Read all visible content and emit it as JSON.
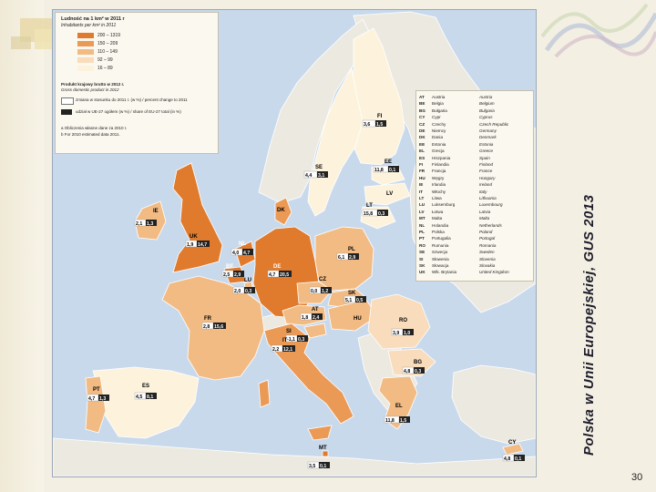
{
  "slide": {
    "title": "Polska w Unii Europejskiej, GUS 2013",
    "page_number": "30"
  },
  "legend": {
    "title": "Ludność na 1 km² w 2011 r",
    "subtitle": "Inhabitants per km² in 2011",
    "classes": [
      {
        "label": "200 – 1319",
        "color": "#e07a2c"
      },
      {
        "label": "150 – 209",
        "color": "#eb9a55"
      },
      {
        "label": "110 – 149",
        "color": "#f2bb83"
      },
      {
        "label": "92 – 99",
        "color": "#f8dcbc"
      },
      {
        "label": "16 – 89",
        "color": "#fdf3dd"
      }
    ],
    "gdp_title": "Produkt krajowy brutto w 2012 r.",
    "gdp_subtitle": "Gross domestic product in 2012",
    "gdp_row1": "zmiana w stosunku do 2011 r. (w %) / percent change to 2011",
    "gdp_row2": "udział w UE-27 ogółem (w %) / share of EU-27 total (in %)",
    "note1": "a Obliczenia własne dane za 2010 r.",
    "note2": "b For 2010 estimated data 2011."
  },
  "countries": [
    {
      "code": "AT",
      "pl": "Austria",
      "en": "Austria"
    },
    {
      "code": "BE",
      "pl": "Belgia",
      "en": "Belgium"
    },
    {
      "code": "BG",
      "pl": "Bułgaria",
      "en": "Bulgaria"
    },
    {
      "code": "CY",
      "pl": "Cypr",
      "en": "Cyprus"
    },
    {
      "code": "CZ",
      "pl": "Czechy",
      "en": "Czech Republic"
    },
    {
      "code": "DE",
      "pl": "Niemcy",
      "en": "Germany"
    },
    {
      "code": "DK",
      "pl": "Dania",
      "en": "Denmark"
    },
    {
      "code": "EE",
      "pl": "Estonia",
      "en": "Estonia"
    },
    {
      "code": "EL",
      "pl": "Grecja",
      "en": "Greece"
    },
    {
      "code": "ES",
      "pl": "Hiszpania",
      "en": "Spain"
    },
    {
      "code": "FI",
      "pl": "Finlandia",
      "en": "Finland"
    },
    {
      "code": "FR",
      "pl": "Francja",
      "en": "France"
    },
    {
      "code": "HU",
      "pl": "Węgry",
      "en": "Hungary"
    },
    {
      "code": "IE",
      "pl": "Irlandia",
      "en": "Ireland"
    },
    {
      "code": "IT",
      "pl": "Włochy",
      "en": "Italy"
    },
    {
      "code": "LT",
      "pl": "Litwa",
      "en": "Lithuania"
    },
    {
      "code": "LU",
      "pl": "Luksemburg",
      "en": "Luxembourg"
    },
    {
      "code": "LV",
      "pl": "Łotwa",
      "en": "Latvia"
    },
    {
      "code": "MT",
      "pl": "Malta",
      "en": "Malta"
    },
    {
      "code": "NL",
      "pl": "Holandia",
      "en": "Netherlands"
    },
    {
      "code": "PL",
      "pl": "Polska",
      "en": "Poland"
    },
    {
      "code": "PT",
      "pl": "Portugalia",
      "en": "Portugal"
    },
    {
      "code": "RO",
      "pl": "Rumunia",
      "en": "Romania"
    },
    {
      "code": "SE",
      "pl": "Szwecja",
      "en": "Sweden"
    },
    {
      "code": "SI",
      "pl": "Słowenia",
      "en": "Slovenia"
    },
    {
      "code": "SK",
      "pl": "Słowacja",
      "en": "Slovakia"
    },
    {
      "code": "UK",
      "pl": "Wlk. Brytania",
      "en": "United Kingdom"
    }
  ],
  "map_labels": {
    "FI": {
      "code": "FI",
      "v1": "3,6",
      "v2": "1,5"
    },
    "SE": {
      "code": "SE",
      "v1": "4,4",
      "v2": "3,1"
    },
    "EE": {
      "code": "EE",
      "v1": "11,8",
      "v2": "0,1"
    },
    "LV": {
      "code": "LV",
      "v1": "",
      "v2": ""
    },
    "LT": {
      "code": "LT",
      "v1": "15,8",
      "v2": "0,3"
    },
    "IE": {
      "code": "IE",
      "v1": "2,1",
      "v2": "1,3"
    },
    "UK": {
      "code": "UK",
      "v1": "1,9",
      "v2": "14,7"
    },
    "DK": {
      "code": "DK",
      "v1": "",
      "v2": ""
    },
    "NL": {
      "code": "NL",
      "v1": "4,0",
      "v2": "4,7"
    },
    "BE": {
      "code": "BE",
      "v1": "2,5",
      "v2": "2,9"
    },
    "LU": {
      "code": "LU",
      "v1": "2,0",
      "v2": "0,3"
    },
    "DE": {
      "code": "DE",
      "v1": "4,7",
      "v2": "20,5"
    },
    "PL": {
      "code": "PL",
      "v1": "6,1",
      "v2": "2,9"
    },
    "CZ": {
      "code": "CZ",
      "v1": "0,0",
      "v2": "1,2"
    },
    "SK": {
      "code": "SK",
      "v1": "5,1",
      "v2": "0,5"
    },
    "AT": {
      "code": "AT",
      "v1": "1,8",
      "v2": "2,4"
    },
    "HU": {
      "code": "HU",
      "v1": "",
      "v2": ""
    },
    "FR": {
      "code": "FR",
      "v1": "2,8",
      "v2": "15,6"
    },
    "RO": {
      "code": "RO",
      "v1": "3,9",
      "v2": "1,0"
    },
    "SI": {
      "code": "SI",
      "v1": "-1,1",
      "v2": "0,3"
    },
    "IT": {
      "code": "IT",
      "v1": "2,2",
      "v2": "12,1"
    },
    "BG": {
      "code": "BG",
      "v1": "4,8",
      "v2": "0,3"
    },
    "PT": {
      "code": "PT",
      "v1": "4,7",
      "v2": "1,3"
    },
    "ES": {
      "code": "ES",
      "v1": "4,5",
      "v2": "8,1"
    },
    "EL": {
      "code": "EL",
      "v1": "11,8",
      "v2": "1,5"
    },
    "MT": {
      "code": "MT",
      "v1": "3,5",
      "v2": "0,1"
    },
    "CY": {
      "code": "CY",
      "v1": "4,8",
      "v2": "0,1"
    }
  },
  "colors": {
    "sea": "#c9d9ec",
    "non_eu": "#ece9e1",
    "class1": "#e07a2c",
    "class2": "#eb9a55",
    "class3": "#f2bb83",
    "class4": "#f8dcbc",
    "class5": "#fdf3dd",
    "border": "#ffffff"
  }
}
